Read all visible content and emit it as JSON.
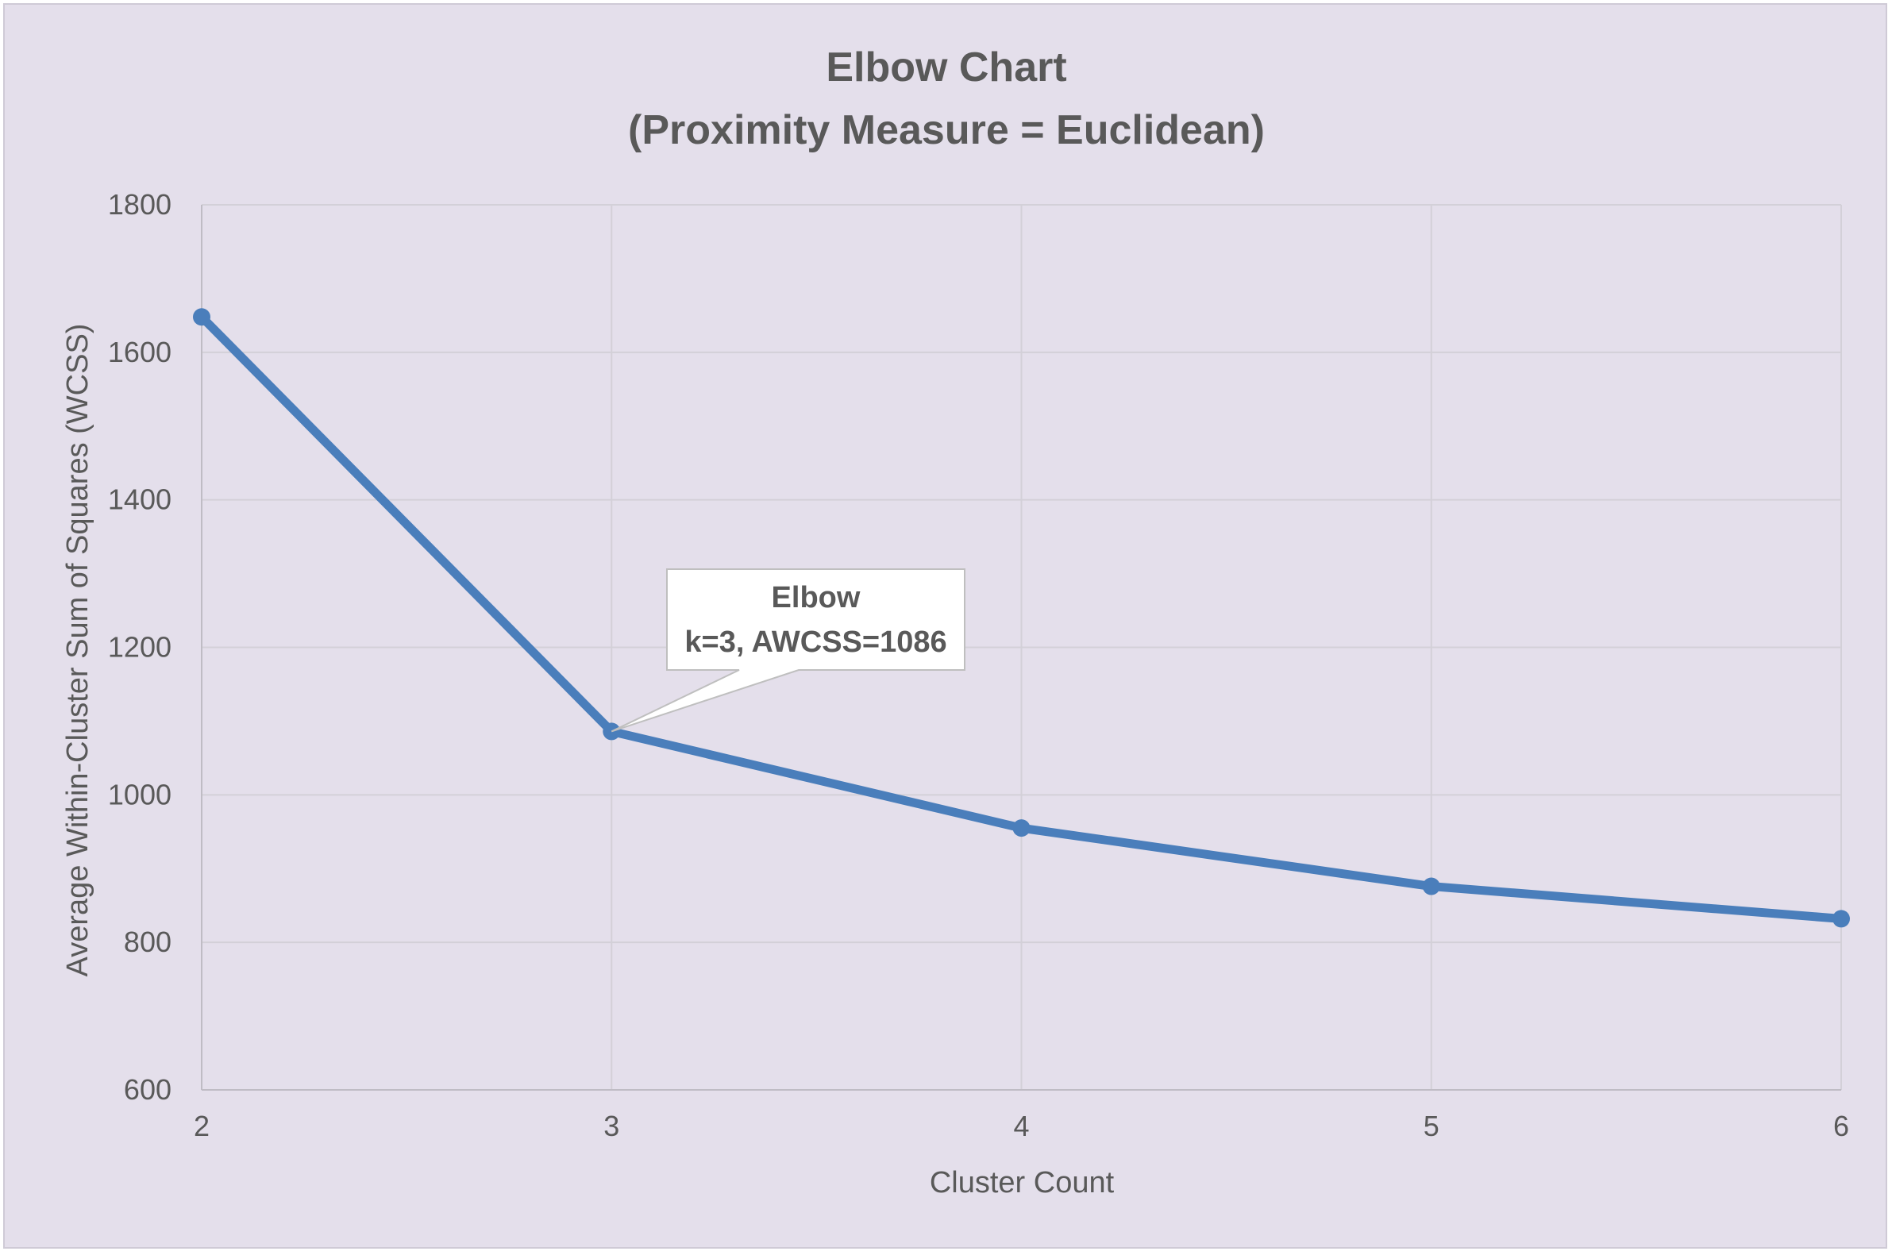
{
  "chart_data": {
    "type": "line",
    "title_lines": [
      "Elbow Chart",
      "(Proximity Measure = Euclidean)"
    ],
    "xlabel": "Cluster Count",
    "ylabel": "Average Within-Cluster Sum of Squares (WCSS)",
    "x": [
      2,
      3,
      4,
      5,
      6
    ],
    "x_tick_labels": [
      "2",
      "3",
      "4",
      "5",
      "6"
    ],
    "series": [
      {
        "values": [
          1648,
          1086,
          955,
          876,
          832
        ],
        "color": "#4a7ebb"
      }
    ],
    "ylim": [
      600,
      1800
    ],
    "y_ticks": [
      600,
      800,
      1000,
      1200,
      1400,
      1600,
      1800
    ],
    "xlim": [
      2,
      6
    ],
    "grid": true,
    "legend": "none",
    "annotation": {
      "x": 3,
      "y": 1086,
      "lines": [
        "Elbow",
        "k=3, AWCSS=1086"
      ]
    }
  }
}
